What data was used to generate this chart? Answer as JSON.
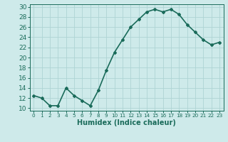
{
  "x": [
    0,
    1,
    2,
    3,
    4,
    5,
    6,
    7,
    8,
    9,
    10,
    11,
    12,
    13,
    14,
    15,
    16,
    17,
    18,
    19,
    20,
    21,
    22,
    23
  ],
  "y": [
    12.5,
    12.0,
    10.5,
    10.5,
    14.0,
    12.5,
    11.5,
    10.5,
    13.5,
    17.5,
    21.0,
    23.5,
    26.0,
    27.5,
    29.0,
    29.5,
    29.0,
    29.5,
    28.5,
    26.5,
    25.0,
    23.5,
    22.5,
    23.0
  ],
  "line_color": "#1a6b5a",
  "marker": "D",
  "marker_size": 2.0,
  "bg_color": "#ceeaea",
  "grid_color": "#aed4d4",
  "xlabel": "Humidex (Indice chaleur)",
  "xlim": [
    -0.5,
    23.5
  ],
  "ylim": [
    9.5,
    30.5
  ],
  "yticks": [
    10,
    12,
    14,
    16,
    18,
    20,
    22,
    24,
    26,
    28,
    30
  ],
  "xticks": [
    0,
    1,
    2,
    3,
    4,
    5,
    6,
    7,
    8,
    9,
    10,
    11,
    12,
    13,
    14,
    15,
    16,
    17,
    18,
    19,
    20,
    21,
    22,
    23
  ],
  "tick_color": "#1a6b5a",
  "xlabel_fontsize": 7.0,
  "ytick_fontsize": 6.5,
  "xtick_fontsize": 5.2,
  "line_width": 1.2
}
